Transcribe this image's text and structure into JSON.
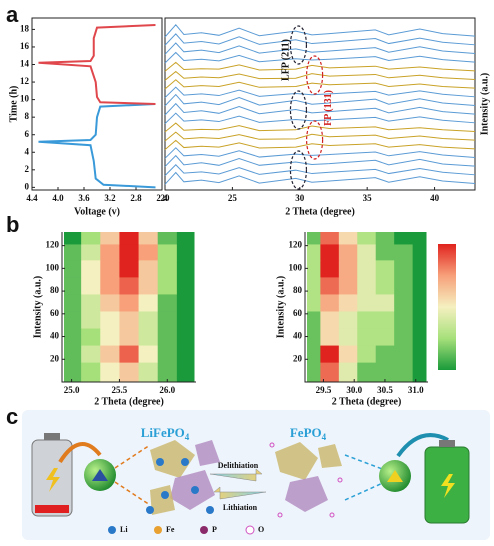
{
  "panels": [
    "a",
    "b",
    "c"
  ],
  "chart_data": [
    {
      "type": "line",
      "xlabel": "Voltage (v)",
      "ylabel": "Time (h)",
      "xlim": [
        4.4,
        2.4
      ],
      "xticks": [
        4.4,
        {
          "value": 4,
          "label": "4.0"
        },
        3.6,
        3.2,
        2.8,
        2.4
      ],
      "ylim": [
        -0.3,
        19.3
      ],
      "yticks": [
        0,
        2,
        4,
        6,
        8,
        10,
        12,
        14,
        16,
        18
      ],
      "series": [
        {
          "color": "#3a9ad9",
          "x": [
            2.5,
            3.3,
            3.42,
            3.45,
            3.5,
            4.3,
            3.5,
            3.42,
            3.4,
            3.35,
            2.5
          ],
          "values": [
            0,
            0.3,
            1,
            3,
            4.8,
            5.2,
            5.4,
            6,
            8,
            9.2,
            9.5
          ]
        },
        {
          "color": "#e0474c",
          "x": [
            2.5,
            3.35,
            3.4,
            3.42,
            3.5,
            4.3,
            3.5,
            3.45,
            3.45,
            3.4,
            2.5
          ],
          "values": [
            9.5,
            9.7,
            10.3,
            12,
            13.8,
            14.2,
            14.4,
            15,
            17,
            18.2,
            18.5
          ]
        }
      ]
    },
    {
      "type": "waterfall",
      "xlabel": "2 Theta (degree)",
      "ylabel": "Intensity (a.u.)",
      "annotations": [
        "LFP (211)",
        "FP (131)"
      ],
      "xlim": [
        20,
        43
      ],
      "xticks": [
        20,
        25,
        30,
        35,
        40
      ],
      "x": [
        20,
        20.8,
        21.4,
        22.7,
        24,
        25.5,
        27,
        29.7,
        30.9,
        32.2,
        35.6,
        36.6,
        38.9,
        40.6,
        43
      ],
      "series": [
        {
          "color": "#5b9bd5",
          "values": [
            4,
            32,
            10,
            14,
            8,
            24,
            7,
            18,
            9,
            12,
            20,
            9,
            22,
            12,
            6
          ]
        },
        {
          "color": "#5b9bd5",
          "values": [
            4,
            30,
            10,
            13,
            8,
            23,
            7,
            17,
            9,
            12,
            19,
            9,
            21,
            12,
            6
          ]
        },
        {
          "color": "#5b9bd5",
          "values": [
            5,
            31,
            9,
            14,
            8,
            24,
            8,
            16,
            10,
            12,
            20,
            9,
            22,
            11,
            6
          ]
        },
        {
          "color": "#5b9bd5",
          "values": [
            4,
            29,
            10,
            13,
            9,
            22,
            7,
            14,
            11,
            13,
            19,
            10,
            20,
            12,
            6
          ]
        },
        {
          "color": "#c9a227",
          "values": [
            4,
            26,
            9,
            12,
            10,
            20,
            8,
            10,
            18,
            14,
            18,
            10,
            16,
            10,
            6
          ]
        },
        {
          "color": "#c9a227",
          "values": [
            4,
            25,
            9,
            12,
            10,
            19,
            8,
            9,
            20,
            14,
            18,
            10,
            16,
            10,
            6
          ]
        },
        {
          "color": "#c9a227",
          "values": [
            5,
            26,
            9,
            11,
            10,
            20,
            8,
            10,
            19,
            13,
            17,
            10,
            15,
            10,
            6
          ]
        },
        {
          "color": "#5b9bd5",
          "values": [
            4,
            29,
            10,
            13,
            9,
            22,
            7,
            14,
            11,
            13,
            19,
            10,
            20,
            12,
            6
          ]
        },
        {
          "color": "#5b9bd5",
          "values": [
            4,
            31,
            10,
            14,
            8,
            24,
            7,
            17,
            9,
            12,
            20,
            9,
            22,
            12,
            6
          ]
        },
        {
          "color": "#5b9bd5",
          "values": [
            5,
            32,
            10,
            14,
            8,
            25,
            7,
            18,
            9,
            12,
            21,
            9,
            22,
            12,
            6
          ]
        },
        {
          "color": "#5b9bd5",
          "values": [
            4,
            29,
            10,
            13,
            9,
            22,
            7,
            14,
            11,
            13,
            19,
            10,
            20,
            12,
            6
          ]
        },
        {
          "color": "#c9a227",
          "values": [
            4,
            26,
            9,
            12,
            10,
            20,
            8,
            10,
            18,
            14,
            18,
            10,
            16,
            10,
            6
          ]
        },
        {
          "color": "#c9a227",
          "values": [
            4,
            25,
            9,
            12,
            10,
            19,
            8,
            9,
            20,
            14,
            18,
            10,
            16,
            10,
            6
          ]
        },
        {
          "color": "#c9a227",
          "values": [
            5,
            26,
            9,
            11,
            10,
            20,
            8,
            10,
            19,
            13,
            17,
            10,
            15,
            10,
            6
          ]
        },
        {
          "color": "#5b9bd5",
          "values": [
            4,
            29,
            10,
            13,
            9,
            22,
            7,
            14,
            11,
            13,
            19,
            10,
            20,
            12,
            6
          ]
        },
        {
          "color": "#5b9bd5",
          "values": [
            4,
            31,
            10,
            14,
            8,
            24,
            7,
            17,
            9,
            12,
            20,
            9,
            22,
            12,
            6
          ]
        },
        {
          "color": "#5b9bd5",
          "values": [
            5,
            32,
            10,
            14,
            8,
            25,
            7,
            18,
            9,
            12,
            21,
            9,
            22,
            12,
            6
          ]
        },
        {
          "color": "#5b9bd5",
          "values": [
            4,
            33,
            10,
            14,
            8,
            25,
            7,
            18,
            9,
            12,
            21,
            9,
            23,
            12,
            6
          ]
        }
      ]
    },
    {
      "type": "heatmap",
      "xlabel": "2 Theta (degree)",
      "ylabel": "Intensity (a.u.)",
      "xlim": [
        24.9,
        26.3
      ],
      "xticks": [
        {
          "value": 25,
          "label": "25.0"
        },
        25.5,
        {
          "value": 26,
          "label": "26.0"
        }
      ],
      "ylim": [
        0,
        132
      ],
      "yticks": [
        20,
        40,
        60,
        80,
        100,
        120
      ],
      "colorscale": [
        "#1a9a3a",
        "#a6e07a",
        "#f5f0c0",
        "#f7a07a",
        "#e0231e"
      ],
      "x": [
        25.0,
        25.2,
        25.4,
        25.6,
        25.8,
        26.0,
        26.2
      ],
      "y": [
        10,
        25,
        40,
        55,
        70,
        85,
        100,
        115,
        128
      ],
      "z": [
        [
          3,
          4,
          6,
          7,
          5,
          3,
          2
        ],
        [
          3,
          5,
          7,
          9,
          6,
          3,
          2
        ],
        [
          3,
          4,
          6,
          7,
          5,
          3,
          2
        ],
        [
          3,
          5,
          6,
          7,
          5,
          3,
          2
        ],
        [
          3,
          5,
          7,
          8,
          6,
          3,
          2
        ],
        [
          3,
          6,
          8,
          9,
          7,
          4,
          2
        ],
        [
          3,
          6,
          8,
          10,
          7,
          4,
          2
        ],
        [
          3,
          5,
          8,
          10,
          8,
          4,
          2
        ],
        [
          2,
          4,
          7,
          10,
          7,
          3,
          2
        ]
      ]
    },
    {
      "type": "heatmap",
      "xlabel": "2 Theta (degree)",
      "ylabel": "Intensity (a.u.)",
      "xlim": [
        29.2,
        31.2
      ],
      "xticks": [
        29.5,
        {
          "value": 30,
          "label": "30.0"
        },
        30.5,
        {
          "value": 31,
          "label": "31.0"
        }
      ],
      "ylim": [
        0,
        132
      ],
      "yticks": [
        20,
        40,
        60,
        80,
        100,
        120
      ],
      "colorscale": [
        "#1a9a3a",
        "#a6e07a",
        "#f5f0c0",
        "#f7a07a",
        "#e0231e"
      ],
      "colorbar": true,
      "x": [
        29.3,
        29.6,
        29.9,
        30.2,
        30.5,
        30.8,
        31.1
      ],
      "y": [
        10,
        25,
        40,
        55,
        70,
        85,
        100,
        115,
        128
      ],
      "z": [
        [
          3,
          8,
          5,
          3,
          3,
          3,
          2
        ],
        [
          3,
          9,
          6,
          4,
          3,
          3,
          2
        ],
        [
          3,
          6,
          5,
          4,
          4,
          3,
          2
        ],
        [
          3,
          6,
          5,
          4,
          4,
          3,
          2
        ],
        [
          4,
          7,
          6,
          5,
          5,
          3,
          2
        ],
        [
          4,
          8,
          7,
          5,
          4,
          3,
          2
        ],
        [
          4,
          9,
          7,
          5,
          4,
          3,
          2
        ],
        [
          4,
          9,
          7,
          5,
          3,
          3,
          2
        ],
        [
          3,
          8,
          6,
          4,
          3,
          2,
          2
        ]
      ]
    }
  ],
  "diagram": {
    "left_formula": {
      "base": "LiFePO",
      "sub": "4"
    },
    "right_formula": {
      "base": "FePO",
      "sub": "4"
    },
    "arrow_top": "Delithiation",
    "arrow_bottom": "Lithiation",
    "legend": [
      "Li",
      "Fe",
      "P",
      "O"
    ]
  }
}
